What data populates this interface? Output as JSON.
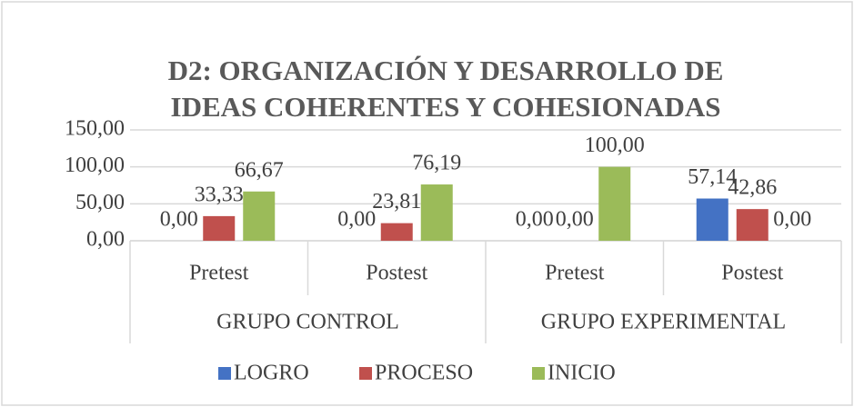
{
  "chart_data": {
    "type": "bar",
    "title": "D2: ORGANIZACIÓN Y DESARROLLO DE IDEAS COHERENTES Y COHESIONADAS",
    "categories": [
      "Pretest",
      "Postest",
      "Pretest",
      "Postest"
    ],
    "groups": [
      "GRUPO CONTROL",
      "GRUPO EXPERIMENTAL"
    ],
    "series": [
      {
        "name": "LOGRO",
        "color": "#4472c4",
        "values": [
          0,
          0,
          0,
          57.14
        ],
        "value_labels": [
          "0,00",
          "0,00",
          "0,00",
          "57,14"
        ]
      },
      {
        "name": "PROCESO",
        "color": "#c0504d",
        "values": [
          33.33,
          23.81,
          0,
          42.86
        ],
        "value_labels": [
          "33,33",
          "23,81",
          "0,00",
          "42,86"
        ]
      },
      {
        "name": "INICIO",
        "color": "#9bbb59",
        "values": [
          66.67,
          76.19,
          100,
          0
        ],
        "value_labels": [
          "66,67",
          "76,19",
          "100,00",
          "0,00"
        ]
      }
    ],
    "ylim": [
      0,
      150
    ],
    "yticks": [
      {
        "value": 0,
        "label": "0,00"
      },
      {
        "value": 50,
        "label": "50,00"
      },
      {
        "value": 100,
        "label": "100,00"
      },
      {
        "value": 150,
        "label": "150,00"
      }
    ],
    "grid": true,
    "legend": "bottom"
  }
}
